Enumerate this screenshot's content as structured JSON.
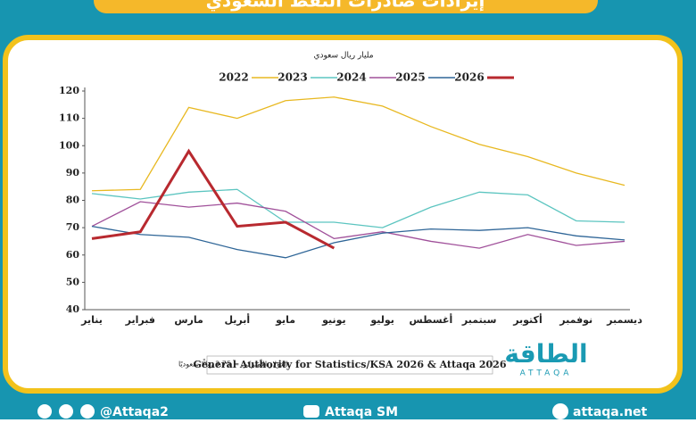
{
  "chart_data": {
    "type": "line",
    "title": "إيرادات صادرات النفط السعودي",
    "unit_label": "مليار ريال سعودي",
    "categories": [
      "يناير",
      "فبراير",
      "مارس",
      "أبريل",
      "مايو",
      "يونيو",
      "يوليو",
      "أغسطس",
      "سبتمبر",
      "أكتوبر",
      "نوفمبر",
      "ديسمبر"
    ],
    "series": [
      {
        "name": "2022",
        "color": "#e8b820",
        "values": [
          83.5,
          84,
          114,
          110,
          116.5,
          117.8,
          114.5,
          107,
          100.5,
          96,
          90,
          85.5
        ]
      },
      {
        "name": "2023",
        "color": "#5cc5c0",
        "values": [
          82.5,
          80.5,
          83,
          84,
          72,
          72,
          70,
          77.5,
          83,
          82,
          72.5,
          72
        ]
      },
      {
        "name": "2024",
        "color": "#a0509a",
        "values": [
          70.5,
          79.5,
          77.5,
          79,
          76,
          66,
          68.5,
          65,
          62.5,
          67.5,
          63.5,
          65
        ]
      },
      {
        "name": "2025",
        "color": "#2e6597",
        "values": [
          70.5,
          67.5,
          66.5,
          62,
          59,
          64.5,
          68,
          69.5,
          69,
          70,
          67,
          65.5
        ]
      },
      {
        "name": "2026",
        "color": "#b8292f",
        "values": [
          66,
          68.5,
          98,
          70.5,
          72,
          62.5,
          null,
          null,
          null,
          null,
          null,
          null
        ]
      }
    ],
    "ylim": [
      40,
      120
    ],
    "yticks": [
      40,
      50,
      60,
      70,
      80,
      90,
      100,
      110,
      120
    ],
    "grid": false,
    "source": "General Authority for Statistics/KSA 2026 & Attaqa 2026",
    "note": "الدولار الأميركي = 3.75 ريالًا سعوديًا",
    "logo": {
      "arabic": "الطاقة",
      "latin": "ATTAQA"
    },
    "footer": {
      "social": "@Attaqa2",
      "youtube": "Attaqa SM",
      "site": "attaqa.net"
    }
  }
}
